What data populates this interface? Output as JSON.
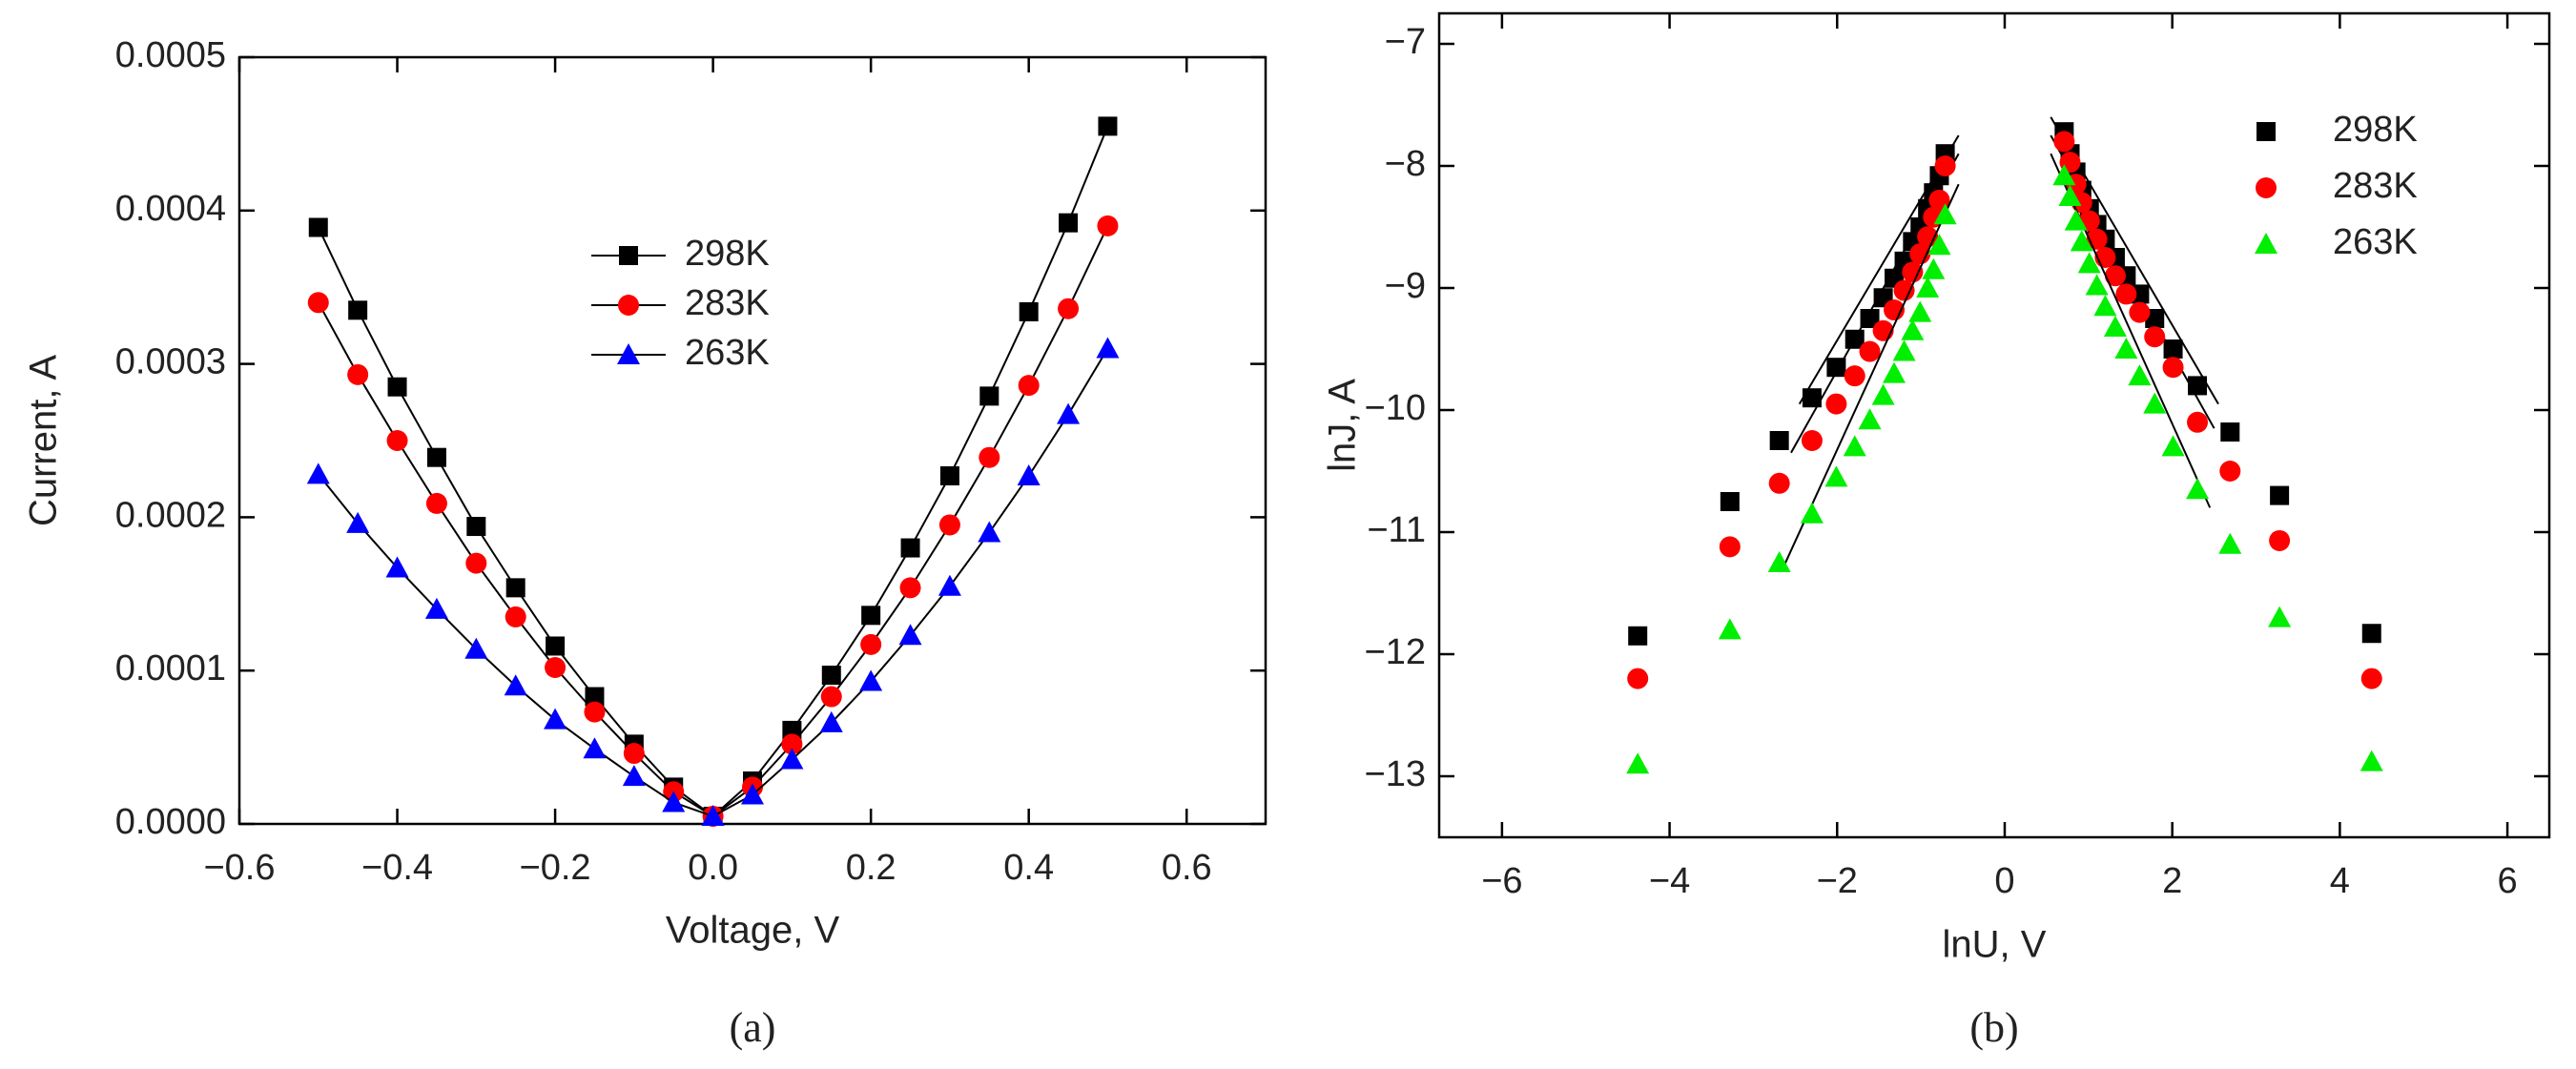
{
  "chart_data": [
    {
      "type": "line",
      "caption": "(a)",
      "xlabel": "Voltage, V",
      "ylabel": "Current, A",
      "xlim": [
        -0.6,
        0.7
      ],
      "xticks": [
        {
          "value": -0.6,
          "label": "−0.6"
        },
        {
          "value": -0.4,
          "label": "−0.4"
        },
        {
          "value": -0.2,
          "label": "−0.2"
        },
        {
          "value": 0,
          "label": "0.0"
        },
        0.2,
        0.4,
        0.6
      ],
      "ylim": [
        0,
        0.0005
      ],
      "yticks": [
        {
          "value": 0,
          "label": "0.0000"
        },
        0.0001,
        0.0002,
        0.0003,
        0.0004,
        0.0005
      ],
      "x": [
        -0.5,
        -0.45,
        -0.4,
        -0.35,
        -0.3,
        -0.25,
        -0.2,
        -0.15,
        -0.1,
        -0.05,
        0,
        0.05,
        0.1,
        0.15,
        0.2,
        0.25,
        0.3,
        0.35,
        0.4,
        0.45,
        0.5
      ],
      "series": [
        {
          "name": "298K",
          "color": "#000000",
          "marker": "square",
          "values": [
            0.000389,
            0.000335,
            0.000285,
            0.000239,
            0.000194,
            0.000154,
            0.000116,
            8.3e-05,
            5.2e-05,
            2.4e-05,
            5e-06,
            2.8e-05,
            6.1e-05,
            9.7e-05,
            0.000136,
            0.00018,
            0.000227,
            0.000279,
            0.000334,
            0.000392,
            0.000455
          ]
        },
        {
          "name": "283K",
          "color": "#ff0000",
          "marker": "circle",
          "values": [
            0.00034,
            0.000293,
            0.00025,
            0.000209,
            0.00017,
            0.000135,
            0.000102,
            7.3e-05,
            4.6e-05,
            2.1e-05,
            5e-06,
            2.4e-05,
            5.2e-05,
            8.3e-05,
            0.000117,
            0.000154,
            0.000195,
            0.000239,
            0.000286,
            0.000336,
            0.00039
          ]
        },
        {
          "name": "263K",
          "color": "#0000ff",
          "marker": "triangle",
          "values": [
            0.000228,
            0.000196,
            0.000167,
            0.00014,
            0.000114,
            9e-05,
            6.8e-05,
            4.9e-05,
            3.1e-05,
            1.4e-05,
            5e-06,
            1.9e-05,
            4.2e-05,
            6.6e-05,
            9.3e-05,
            0.000123,
            0.000155,
            0.00019,
            0.000227,
            0.000267,
            0.00031
          ]
        }
      ]
    },
    {
      "type": "scatter",
      "caption": "(b)",
      "xlabel": "lnU, V",
      "ylabel": "lnJ, A",
      "xlim": [
        -6.75,
        6.5
      ],
      "xticks": [
        {
          "value": -6,
          "label": "−6"
        },
        {
          "value": -4,
          "label": "−4"
        },
        {
          "value": -2,
          "label": "−2"
        },
        0,
        2,
        4,
        6
      ],
      "ylim": [
        -13.5,
        -6.75
      ],
      "yticks": [
        {
          "value": -13,
          "label": "−13"
        },
        {
          "value": -12,
          "label": "−12"
        },
        {
          "value": -11,
          "label": "−11"
        },
        {
          "value": -10,
          "label": "−10"
        },
        {
          "value": -9,
          "label": "−9"
        },
        {
          "value": -8,
          "label": "−8"
        },
        {
          "value": -7,
          "label": "−7"
        }
      ],
      "x": [
        -4.38,
        -3.28,
        -2.69,
        -2.3,
        -2.01,
        -1.79,
        -1.61,
        -1.45,
        -1.32,
        -1.2,
        -1.1,
        -1.01,
        -0.92,
        -0.85,
        -0.78,
        -0.71,
        0.71,
        0.78,
        0.85,
        0.92,
        1.01,
        1.1,
        1.2,
        1.32,
        1.45,
        1.61,
        1.79,
        2.01,
        2.3,
        2.69,
        3.28,
        4.38
      ],
      "series": [
        {
          "name": "298K",
          "color": "#000000",
          "marker": "square",
          "values": [
            -11.85,
            -10.75,
            -10.25,
            -9.9,
            -9.65,
            -9.42,
            -9.25,
            -9.08,
            -8.92,
            -8.78,
            -8.62,
            -8.5,
            -8.35,
            -8.22,
            -8.08,
            -7.9,
            -7.72,
            -7.9,
            -8.05,
            -8.2,
            -8.35,
            -8.48,
            -8.6,
            -8.75,
            -8.9,
            -9.05,
            -9.25,
            -9.5,
            -9.8,
            -10.18,
            -10.7,
            -11.83
          ],
          "fits": [
            {
              "x": [
                -2.45,
                -0.55
              ],
              "y": [
                -9.95,
                -7.75
              ]
            },
            {
              "x": [
                0.55,
                2.55
              ],
              "y": [
                -7.6,
                -9.95
              ]
            }
          ]
        },
        {
          "name": "283K",
          "color": "#ff0000",
          "marker": "circle",
          "values": [
            -12.2,
            -11.12,
            -10.6,
            -10.25,
            -9.95,
            -9.72,
            -9.52,
            -9.35,
            -9.18,
            -9.02,
            -8.87,
            -8.72,
            -8.58,
            -8.42,
            -8.28,
            -8.0,
            -7.8,
            -7.97,
            -8.15,
            -8.3,
            -8.45,
            -8.6,
            -8.75,
            -8.9,
            -9.05,
            -9.2,
            -9.4,
            -9.65,
            -10.1,
            -10.5,
            -11.07,
            -12.2
          ],
          "fits": [
            {
              "x": [
                -2.55,
                -0.55
              ],
              "y": [
                -10.35,
                -7.9
              ]
            },
            {
              "x": [
                0.55,
                2.5
              ],
              "y": [
                -7.75,
                -10.15
              ]
            }
          ]
        },
        {
          "name": "263K",
          "color": "#00ee00",
          "marker": "triangle",
          "values": [
            -12.9,
            -11.8,
            -11.25,
            -10.85,
            -10.55,
            -10.3,
            -10.08,
            -9.88,
            -9.7,
            -9.52,
            -9.35,
            -9.2,
            -9.0,
            -8.85,
            -8.65,
            -8.4,
            -8.08,
            -8.25,
            -8.45,
            -8.62,
            -8.8,
            -8.98,
            -9.15,
            -9.32,
            -9.5,
            -9.72,
            -9.95,
            -10.3,
            -10.65,
            -11.1,
            -11.7,
            -12.88
          ],
          "fits": [
            {
              "x": [
                -2.65,
                -0.55
              ],
              "y": [
                -11.3,
                -8.15
              ]
            },
            {
              "x": [
                0.55,
                2.45
              ],
              "y": [
                -7.9,
                -10.8
              ]
            }
          ]
        }
      ]
    }
  ]
}
